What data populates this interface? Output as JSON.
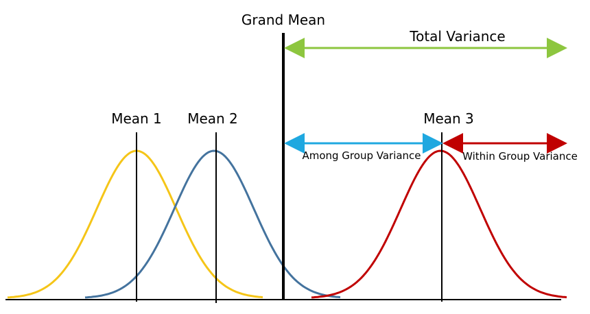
{
  "grand_mean": {
    "label": "Grand Mean"
  },
  "total_variance": {
    "label": "Total Variance"
  },
  "among_group_variance": {
    "label": "Among Group Variance"
  },
  "within_group_variance": {
    "label": "Within Group Variance"
  },
  "groups": [
    {
      "label": "Mean 1"
    },
    {
      "label": "Mean 2"
    },
    {
      "label": "Mean 3"
    }
  ]
}
